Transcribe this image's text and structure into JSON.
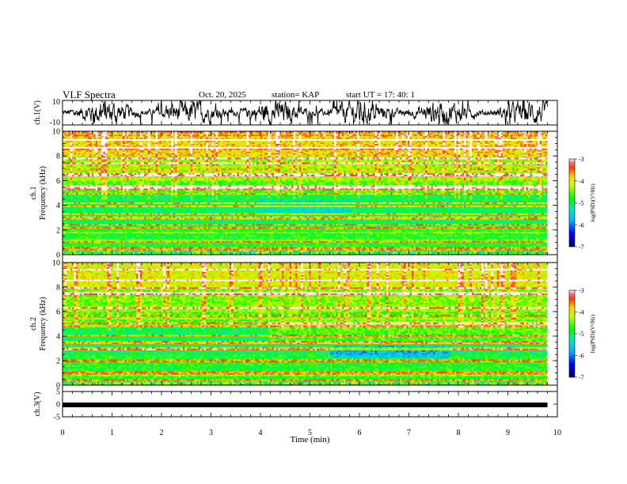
{
  "header": {
    "title": "VLF Spectra",
    "date": "Oct. 20, 2025",
    "station": "station= KAP",
    "start_ut": "start  UT  =   17: 40: 1"
  },
  "chart_data": [
    {
      "type": "line",
      "panel": "ch1-waveform",
      "ylabel": "ch.1(V)",
      "ylim": [
        -10,
        10
      ],
      "ytick_labels": [
        "-10",
        "10"
      ],
      "xlim": [
        0,
        10
      ],
      "x_end": 9.8,
      "description_series": "noisy waveform around 0 V"
    },
    {
      "type": "heatmap",
      "panel": "ch1-spectrogram",
      "ylabel_line1": "ch.1",
      "ylabel_line2": "Frequency (kHz)",
      "ylim": [
        0,
        10
      ],
      "ytick_labels": [
        "0",
        "2",
        "4",
        "6",
        "8",
        "10"
      ],
      "xlim": [
        0,
        10
      ],
      "x_end": 9.8,
      "colorbar": {
        "label": "log(PSD)(V²/Hz)",
        "range": [
          -7,
          -3
        ],
        "tick_labels": [
          "-7",
          "-6",
          "-5",
          "-4",
          "-3"
        ]
      },
      "line_freqs_khz": [
        0.5,
        1.1,
        2.2,
        2.4,
        3.0,
        3.3,
        3.9,
        4.2,
        4.9,
        5.3,
        5.5,
        6.5,
        7.4,
        7.8,
        8.7,
        9.3
      ]
    },
    {
      "type": "heatmap",
      "panel": "ch2-spectrogram",
      "ylabel_line1": "ch.2",
      "ylabel_line2": "Frequency (kHz)",
      "ylim": [
        0,
        10
      ],
      "ytick_labels": [
        "0",
        "2",
        "4",
        "6",
        "8",
        "10"
      ],
      "xlim": [
        0,
        10
      ],
      "x_end": 9.8,
      "colorbar": {
        "label": "log(PSD)(V²/Hz)",
        "range": [
          -7,
          -3
        ],
        "tick_labels": [
          "-7",
          "-6",
          "-5",
          "-4",
          "-3"
        ]
      },
      "line_freqs_khz": [
        0.4,
        1.0,
        1.9,
        2.1,
        3.0,
        3.5,
        4.1,
        4.8,
        5.1,
        5.7,
        6.3,
        7.5,
        7.9,
        8.6,
        9.4
      ]
    },
    {
      "type": "line",
      "panel": "ch3-waveform",
      "ylabel": "ch.3(V)",
      "ylim": [
        -5,
        5
      ],
      "ytick_labels": [
        "-5",
        "0",
        "5"
      ],
      "xlim": [
        0,
        10
      ],
      "x_end": 9.8,
      "level_v": -0.3,
      "xlabel": "Time  (min)",
      "xtick_labels": [
        "0",
        "1",
        "2",
        "3",
        "4",
        "5",
        "6",
        "7",
        "8",
        "9",
        "10"
      ]
    }
  ]
}
